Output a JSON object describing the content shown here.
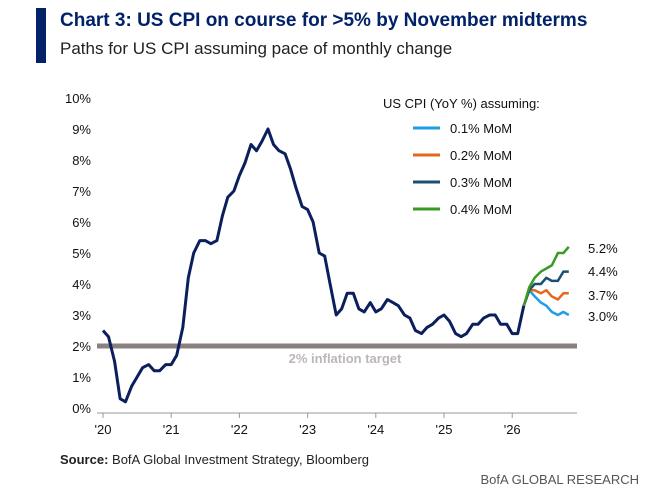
{
  "header": {
    "title": "Chart 3: US CPI on course for >5% by November midterms",
    "subtitle": "Paths for US CPI assuming pace of monthly change"
  },
  "footer": {
    "source_label": "Source:",
    "source_text": "BofA Global Investment Strategy, Bloomberg",
    "brand": "BofA GLOBAL RESEARCH"
  },
  "chart_data": {
    "type": "line",
    "legend_title": "US CPI (YoY %) assuming:",
    "legend_position": "top-right",
    "grid": false,
    "xlim": [
      2020.0,
      2026.95
    ],
    "ylim": [
      0,
      10
    ],
    "x_tick_values": [
      2020,
      2021,
      2022,
      2023,
      2024,
      2025,
      2026
    ],
    "x_tick_labels": [
      "'20",
      "'21",
      "'22",
      "'23",
      "'24",
      "'25",
      "'26"
    ],
    "y_tick_values": [
      0,
      1,
      2,
      3,
      4,
      5,
      6,
      7,
      8,
      9,
      10
    ],
    "y_tick_labels": [
      "0%",
      "1%",
      "2%",
      "3%",
      "4%",
      "5%",
      "6%",
      "7%",
      "8%",
      "9%",
      "10%"
    ],
    "reference_line": {
      "value": 2.0,
      "label": "2% inflation target",
      "color": "#8a8080"
    },
    "history": {
      "color": "#0b1f5c",
      "x": [
        2020.0,
        2020.08,
        2020.17,
        2020.25,
        2020.33,
        2020.42,
        2020.5,
        2020.58,
        2020.67,
        2020.75,
        2020.83,
        2020.92,
        2021.0,
        2021.08,
        2021.17,
        2021.25,
        2021.33,
        2021.42,
        2021.5,
        2021.58,
        2021.67,
        2021.75,
        2021.83,
        2021.92,
        2022.0,
        2022.08,
        2022.17,
        2022.25,
        2022.33,
        2022.42,
        2022.5,
        2022.58,
        2022.67,
        2022.75,
        2022.83,
        2022.92,
        2023.0,
        2023.08,
        2023.17,
        2023.25,
        2023.33,
        2023.42,
        2023.5,
        2023.58,
        2023.67,
        2023.75,
        2023.83,
        2023.92,
        2024.0,
        2024.08,
        2024.17,
        2024.25,
        2024.33,
        2024.42,
        2024.5,
        2024.58,
        2024.67,
        2024.75,
        2024.83,
        2024.92,
        2025.0,
        2025.08,
        2025.17,
        2025.25,
        2025.33,
        2025.42,
        2025.5,
        2025.58,
        2025.67,
        2025.75,
        2025.83,
        2025.92,
        2026.0,
        2026.08,
        2026.17
      ],
      "y": [
        2.5,
        2.3,
        1.5,
        0.3,
        0.2,
        0.7,
        1.0,
        1.3,
        1.4,
        1.2,
        1.2,
        1.4,
        1.4,
        1.7,
        2.6,
        4.2,
        5.0,
        5.4,
        5.4,
        5.3,
        5.4,
        6.2,
        6.8,
        7.0,
        7.5,
        7.9,
        8.5,
        8.3,
        8.6,
        9.0,
        8.5,
        8.3,
        8.2,
        7.7,
        7.1,
        6.5,
        6.4,
        6.0,
        5.0,
        4.9,
        4.0,
        3.0,
        3.2,
        3.7,
        3.7,
        3.2,
        3.1,
        3.4,
        3.1,
        3.2,
        3.5,
        3.4,
        3.3,
        3.0,
        2.9,
        2.5,
        2.4,
        2.6,
        2.7,
        2.9,
        3.0,
        2.8,
        2.4,
        2.3,
        2.4,
        2.7,
        2.7,
        2.9,
        3.0,
        3.0,
        2.7,
        2.7,
        2.4,
        2.4,
        3.3
      ]
    },
    "series": [
      {
        "name": "0.1% MoM",
        "color": "#1f9ee6",
        "end_label": "3.0%",
        "x": [
          2026.17,
          2026.25,
          2026.33,
          2026.42,
          2026.5,
          2026.58,
          2026.67,
          2026.75,
          2026.83
        ],
        "y": [
          3.3,
          3.8,
          3.6,
          3.4,
          3.3,
          3.1,
          3.0,
          3.1,
          3.0
        ]
      },
      {
        "name": "0.2% MoM",
        "color": "#e5661e",
        "end_label": "3.7%",
        "x": [
          2026.17,
          2026.25,
          2026.33,
          2026.42,
          2026.5,
          2026.58,
          2026.67,
          2026.75,
          2026.83
        ],
        "y": [
          3.3,
          3.8,
          3.8,
          3.7,
          3.8,
          3.6,
          3.5,
          3.7,
          3.7
        ]
      },
      {
        "name": "0.3% MoM",
        "color": "#1a4f72",
        "end_label": "4.4%",
        "x": [
          2026.17,
          2026.25,
          2026.33,
          2026.42,
          2026.5,
          2026.58,
          2026.67,
          2026.75,
          2026.83
        ],
        "y": [
          3.3,
          3.8,
          4.0,
          4.0,
          4.2,
          4.1,
          4.1,
          4.4,
          4.4
        ]
      },
      {
        "name": "0.4% MoM",
        "color": "#3a9a23",
        "end_label": "5.2%",
        "x": [
          2026.17,
          2026.25,
          2026.33,
          2026.42,
          2026.5,
          2026.58,
          2026.67,
          2026.75,
          2026.83
        ],
        "y": [
          3.3,
          3.9,
          4.2,
          4.4,
          4.5,
          4.6,
          5.0,
          5.0,
          5.2
        ]
      }
    ]
  }
}
